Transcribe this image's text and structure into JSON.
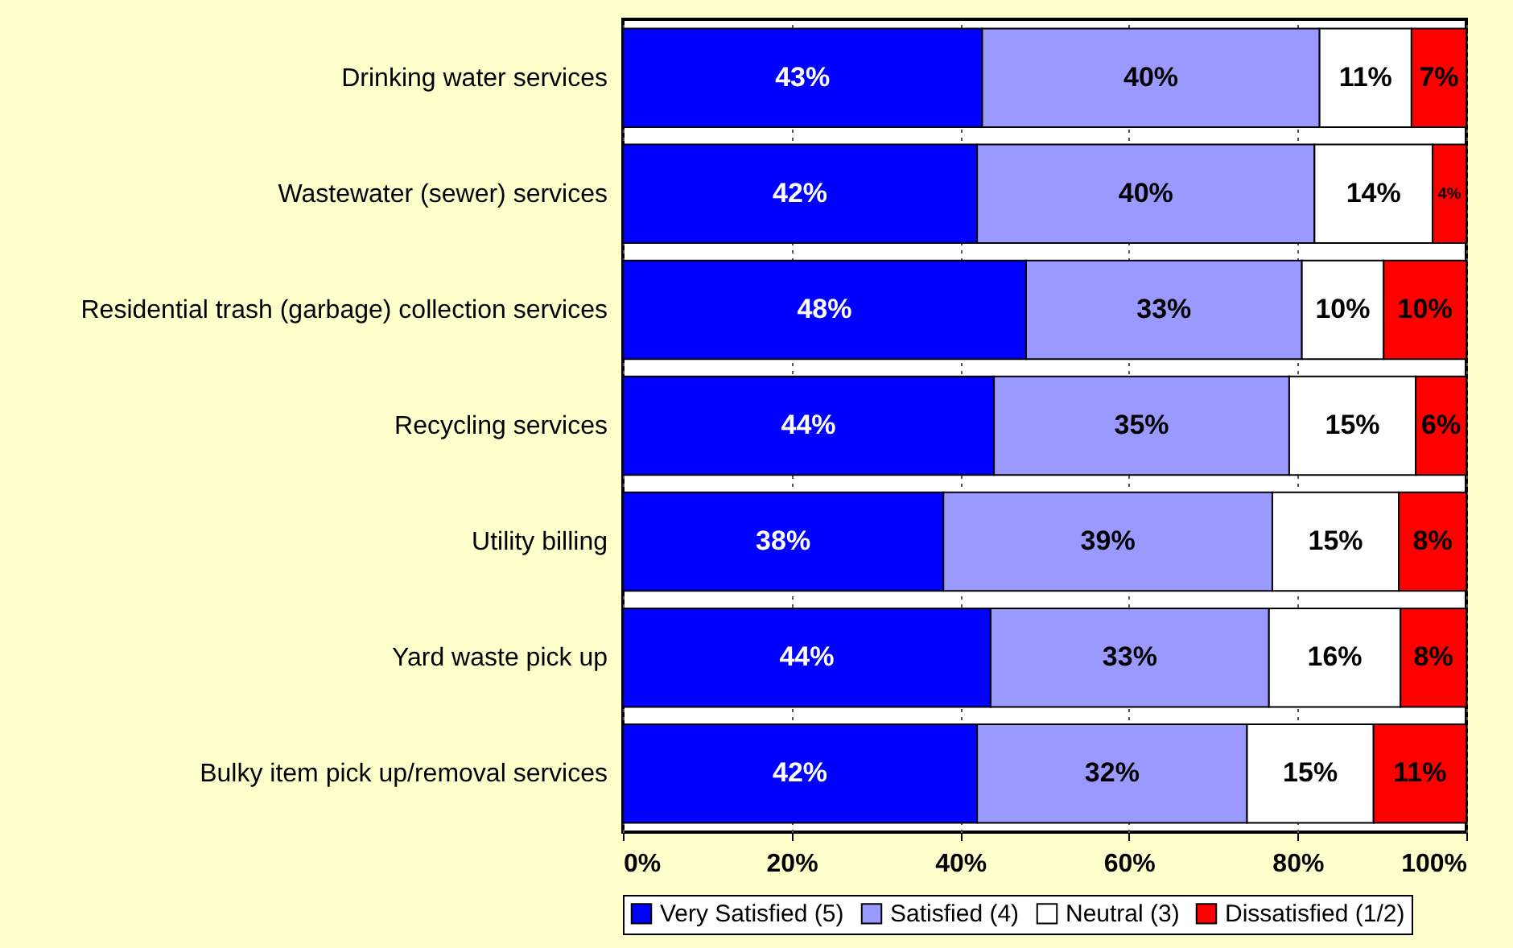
{
  "chart_data": {
    "type": "bar",
    "orientation": "horizontal",
    "stacked": true,
    "categories": [
      "Drinking water services",
      "Wastewater (sewer) services",
      "Residential trash (garbage) collection services",
      "Recycling services",
      "Utility billing",
      "Yard waste pick up",
      "Bulky item pick up/removal services"
    ],
    "series": [
      {
        "name": "Very Satisfied (5)",
        "color": "#0000ff",
        "values": [
          42.6,
          42,
          47.8,
          44,
          38,
          43.6,
          42
        ],
        "value_labels": [
          "43%",
          "42%",
          "48%",
          "44%",
          "38%",
          "44%",
          "42%"
        ]
      },
      {
        "name": "Satisfied (4)",
        "color": "#9999ff",
        "values": [
          40,
          40,
          32.7,
          35,
          39,
          33,
          32
        ],
        "value_labels": [
          "40%",
          "40%",
          "33%",
          "35%",
          "39%",
          "33%",
          "32%"
        ]
      },
      {
        "name": "Neutral (3)",
        "color": "#ffffff",
        "values": [
          10.9,
          14,
          9.7,
          15,
          15,
          15.6,
          15
        ],
        "value_labels": [
          "11%",
          "14%",
          "10%",
          "15%",
          "15%",
          "16%",
          "15%"
        ]
      },
      {
        "name": "Dissatisfied (1/2)",
        "color": "#ff0000",
        "values": [
          6.5,
          4,
          9.8,
          6,
          8,
          7.8,
          11
        ],
        "value_labels": [
          "7%",
          "4%",
          "10%",
          "6%",
          "8%",
          "8%",
          "11%"
        ]
      }
    ],
    "xlim": [
      0,
      100
    ],
    "xticks": [
      {
        "value": 0,
        "label": "0%"
      },
      {
        "value": 20,
        "label": "20%"
      },
      {
        "value": 40,
        "label": "40%"
      },
      {
        "value": 60,
        "label": "60%"
      },
      {
        "value": 80,
        "label": "80%"
      },
      {
        "value": 100,
        "label": "100%"
      }
    ],
    "grid": "x",
    "legend": "bottom"
  }
}
